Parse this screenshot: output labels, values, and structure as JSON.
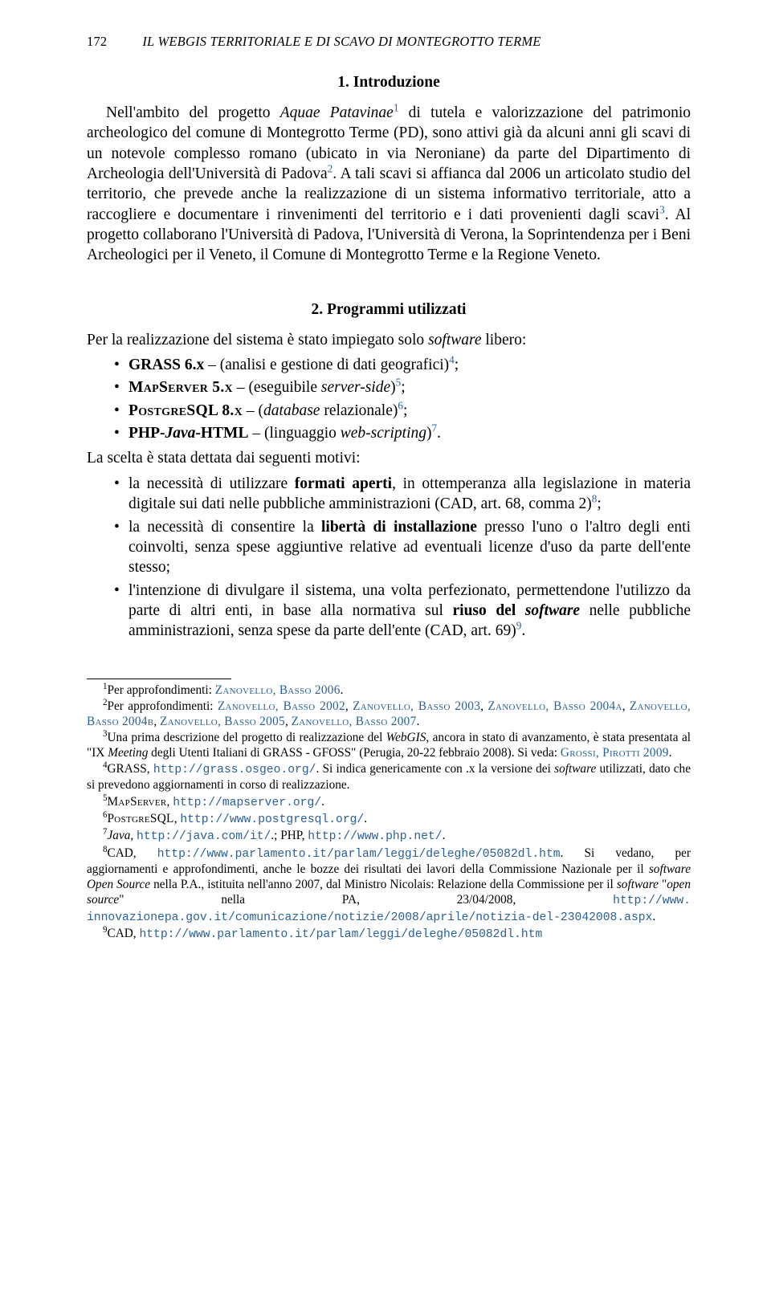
{
  "header": {
    "page_number": "172",
    "running_title": "IL WEBGIS TERRITORIALE E DI SCAVO DI MONTEGROTTO TERME"
  },
  "section1": {
    "title": "1. Introduzione",
    "p1_a": "Nell'ambito del progetto ",
    "p1_b": "Aquae Patavinae",
    "p1_sup1": "1",
    "p1_c": " di tutela e valorizzazione del patrimonio archeologico del comune di Montegrotto Terme (PD), sono attivi già da alcuni anni gli scavi di un notevole complesso romano (ubicato in via Neroniane) da parte del Dipartimento di Archeologia dell'Università di Padova",
    "p1_sup2": "2",
    "p1_d": ". A tali scavi si affianca dal 2006 un articolato studio del territorio, che prevede anche la realizzazione di un sistema informativo territoriale, atto a raccogliere e documentare i rinvenimenti del territorio e i dati provenienti dagli scavi",
    "p1_sup3": "3",
    "p1_e": ". Al progetto collaborano l'Università di Padova, l'Università di Verona, la Soprintendenza per i Beni Archeologici per il Veneto, il Comune di Montegrotto Terme e la Regione Veneto."
  },
  "section2": {
    "title": "2. Programmi utilizzati",
    "intro_a": "Per la realizzazione del sistema è stato impiegato solo ",
    "intro_b": "software",
    "intro_c": " libero:",
    "item1_a": "GRASS 6.x",
    "item1_b": " – (analisi e gestione di dati geografici)",
    "item1_sup": "4",
    "item1_c": ";",
    "item2_a": "MapServer 5.x",
    "item2_b": " – (eseguibile ",
    "item2_c": "server-side",
    "item2_d": ")",
    "item2_sup": "5",
    "item2_e": ";",
    "item3_a": "PostgreSQL 8.x",
    "item3_b": " – (",
    "item3_c": "database",
    "item3_d": " relazionale)",
    "item3_sup": "6",
    "item3_e": ";",
    "item4_a": "PHP-",
    "item4_b": "Java",
    "item4_c": "-HTML",
    "item4_d": " – (linguaggio ",
    "item4_e": "web-scripting",
    "item4_f": ")",
    "item4_sup": "7",
    "item4_g": ".",
    "motiv_intro": "La scelta è stata dettata dai seguenti motivi:",
    "m1_a": "la necessità di utilizzare ",
    "m1_b": "formati aperti",
    "m1_c": ", in ottemperanza alla legislazione in materia digitale sui dati nelle pubbliche amministrazioni (CAD, art. 68, comma 2)",
    "m1_sup": "8",
    "m1_d": ";",
    "m2_a": "la necessità di consentire la ",
    "m2_b": "libertà di installazione",
    "m2_c": " presso l'uno o l'altro degli enti coinvolti, senza spese aggiuntive relative ad eventuali licenze d'uso da parte dell'ente stesso;",
    "m3_a": "l'intenzione di divulgare il sistema, una volta perfezionato, permettendone l'utilizzo da parte di altri enti, in base alla normativa sul ",
    "m3_b": "riuso del ",
    "m3_c": "software",
    "m3_d": " nelle pubbliche amministrazioni, senza spese da parte dell'ente (CAD, art. 69)",
    "m3_sup": "9",
    "m3_e": "."
  },
  "footnotes": {
    "fn1_sup": "1",
    "fn1_a": "Per approfondimenti: ",
    "fn1_b": "Zanovello, Basso 2006",
    "fn1_c": ".",
    "fn2_sup": "2",
    "fn2_a": "Per approfondimenti: ",
    "fn2_b": "Zanovello, Basso 2002",
    "fn2_c": ", ",
    "fn2_d": "Zanovello, Basso 2003",
    "fn2_e": ", ",
    "fn2_f": "Zanovello, Basso 2004a",
    "fn2_g": ", ",
    "fn2_h": "Zanovello, Basso 2004b",
    "fn2_i": ", ",
    "fn2_j": "Zanovello, Basso 2005",
    "fn2_k": ", ",
    "fn2_l": "Zanovello, Basso 2007",
    "fn2_m": ".",
    "fn3_sup": "3",
    "fn3_a": "Una prima descrizione del progetto di realizzazione del ",
    "fn3_b": "WebGIS",
    "fn3_c": ", ancora in stato di avanzamento, è stata presentata al \"IX ",
    "fn3_d": "Meeting",
    "fn3_e": " degli Utenti Italiani di GRASS - GFOSS\" (Perugia, 20-22 febbraio 2008). Si veda: ",
    "fn3_f": "Grossi, Pirotti 2009",
    "fn3_g": ".",
    "fn4_sup": "4",
    "fn4_a": "GRASS, ",
    "fn4_url": "http://grass.osgeo.org/",
    "fn4_b": ".  Si indica genericamente con .x la versione dei ",
    "fn4_c": "software",
    "fn4_d": " utilizzati, dato che si prevedono aggiornamenti in corso di realizzazione.",
    "fn5_sup": "5",
    "fn5_a": "MapServer",
    "fn5_b": ", ",
    "fn5_url": "http://mapserver.org/",
    "fn5_c": ".",
    "fn6_sup": "6",
    "fn6_a": "PostgreSQL",
    "fn6_b": ", ",
    "fn6_url": "http://www.postgresql.org/",
    "fn6_c": ".",
    "fn7_sup": "7",
    "fn7_a": "Java",
    "fn7_b": ", ",
    "fn7_url1": "http://java.com/it/",
    "fn7_c": ".; PHP, ",
    "fn7_url2": "http://www.php.net/",
    "fn7_d": ".",
    "fn8_sup": "8",
    "fn8_a": "CAD, ",
    "fn8_url": "http://www.parlamento.it/parlam/leggi/deleghe/05082dl.htm",
    "fn8_b": ".  Si vedano, per aggiornamenti e approfondimenti, anche le bozze dei risultati dei lavori della Commissione Nazionale per il ",
    "fn8_c": "software Open Source",
    "fn8_d": " nella P.A., istituita nell'anno 2007, dal Ministro Nicolais: Relazione della Commissione per il ",
    "fn8_e": "software",
    "fn8_f": " \"",
    "fn8_g": "open source",
    "fn8_h": "\" nella PA, 23/04/2008, ",
    "fn8_url2a": "http://www.",
    "fn8_url2b": "innovazionepa.gov.it/comunicazione/notizie/2008/aprile/notizia-del-23042008.aspx",
    "fn8_i": ".",
    "fn9_sup": "9",
    "fn9_a": "CAD, ",
    "fn9_url": "http://www.parlamento.it/parlam/leggi/deleghe/05082dl.htm"
  }
}
